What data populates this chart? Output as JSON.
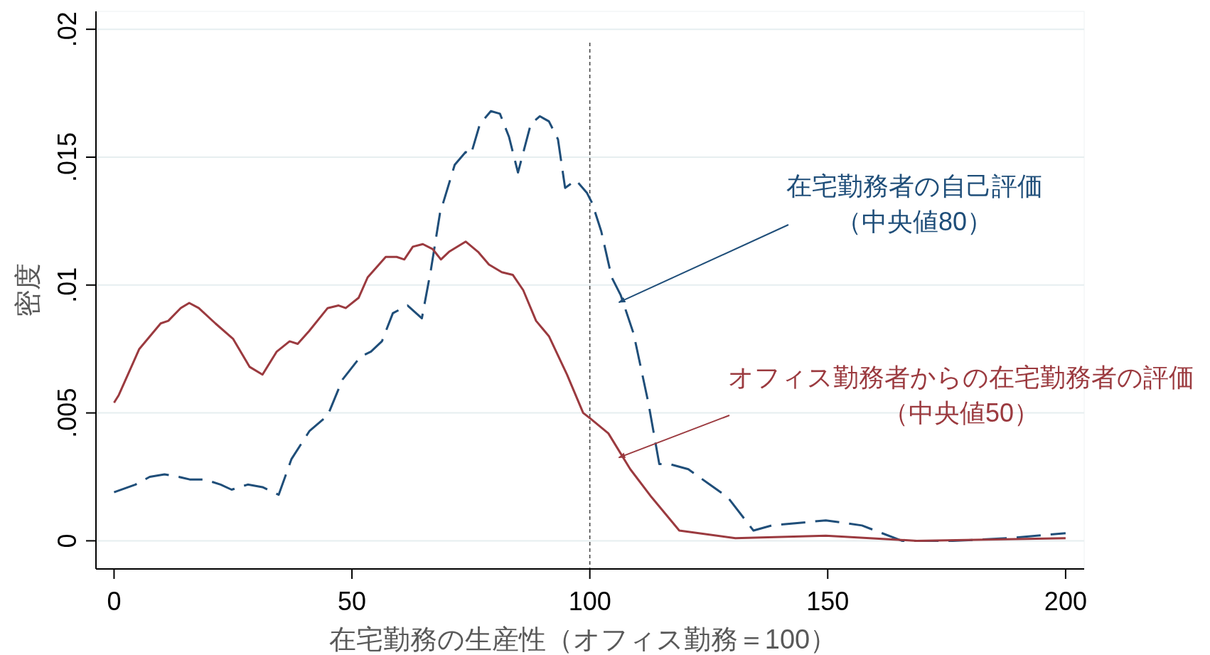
{
  "chart_data": {
    "type": "line",
    "xlabel": "在宅勤務の生産性（オフィス勤務＝100）",
    "ylabel": "密度",
    "xlim": [
      -3.8,
      203.9
    ],
    "xticks": [
      0,
      50,
      100,
      150,
      200
    ],
    "ylim": [
      -0.0011,
      0.0207
    ],
    "yticks": [
      0,
      {
        "value": 0.005,
        "label": ".005"
      },
      {
        "value": 0.01,
        "label": ".01"
      },
      {
        "value": 0.015,
        "label": ".015"
      },
      {
        "value": 0.02,
        "label": ".02"
      }
    ],
    "grid": "y",
    "ref_lines": [
      {
        "axis": "x",
        "value": 100,
        "color": "#404040",
        "line_style": "dashed"
      }
    ],
    "series": [
      {
        "name": "在宅勤務者の自己評価（中央値80）",
        "color": "#1f4e79",
        "line_style": "dashed",
        "x": [
          0,
          4.5,
          7.5,
          10.6,
          13.6,
          15.9,
          19,
          22.4,
          24.7,
          28.1,
          31.2,
          34.6,
          37.3,
          41.1,
          44.9,
          48,
          51.8,
          54,
          56.3,
          58.6,
          61.7,
          64.7,
          66.6,
          68.5,
          71.6,
          73.9,
          75,
          76.9,
          79.2,
          81.1,
          83,
          84.9,
          87.6,
          89.5,
          91.4,
          93.3,
          94.8,
          97.1,
          99.4,
          100.5,
          102.4,
          104.6,
          106.5,
          109.2,
          112.3,
          114.6,
          116.8,
          120.7,
          125.2,
          129,
          134.4,
          138.2,
          149.6,
          157.2,
          165.6,
          176.3,
          187.7,
          200
        ],
        "values": [
          0.0019,
          0.0022,
          0.0025,
          0.0026,
          0.0025,
          0.0024,
          0.0024,
          0.0022,
          0.002,
          0.0022,
          0.0021,
          0.0018,
          0.0032,
          0.0043,
          0.0049,
          0.0063,
          0.0072,
          0.0074,
          0.0078,
          0.0089,
          0.0092,
          0.0087,
          0.0106,
          0.0128,
          0.0147,
          0.0152,
          0.0151,
          0.0163,
          0.0168,
          0.0167,
          0.0158,
          0.0144,
          0.0163,
          0.0166,
          0.0164,
          0.0157,
          0.0138,
          0.0141,
          0.0136,
          0.0132,
          0.0121,
          0.0103,
          0.0096,
          0.0081,
          0.0054,
          0.003,
          0.003,
          0.0028,
          0.0022,
          0.0017,
          0.0004,
          0.0006,
          0.0008,
          0.0006,
          0,
          0,
          0.0001,
          0.0003
        ]
      },
      {
        "name": "オフィス勤務者からの在宅勤務者の評価（中央値50）",
        "color": "#9b3a3f",
        "line_style": "solid",
        "x": [
          0,
          1,
          5.3,
          9.8,
          11.4,
          14,
          15.8,
          17.8,
          21.3,
          25,
          28.5,
          31.2,
          34.2,
          36.9,
          38.6,
          41,
          44.9,
          47.2,
          48.7,
          51.4,
          53.3,
          57.1,
          59.4,
          61,
          62.8,
          64.9,
          67,
          68.7,
          70.4,
          73.9,
          76.5,
          78.8,
          81.5,
          83.8,
          86,
          88.7,
          91.4,
          95.2,
          98.6,
          100,
          103.9,
          108.5,
          113,
          118.8,
          130.6,
          149.6,
          168.7,
          200
        ],
        "values": [
          0.0054,
          0.0057,
          0.0075,
          0.0085,
          0.0086,
          0.0091,
          0.0093,
          0.0091,
          0.0085,
          0.0079,
          0.0068,
          0.0065,
          0.0074,
          0.0078,
          0.0077,
          0.0082,
          0.0091,
          0.0092,
          0.0091,
          0.0095,
          0.0103,
          0.0111,
          0.0111,
          0.011,
          0.0115,
          0.0116,
          0.0114,
          0.011,
          0.0113,
          0.0117,
          0.0113,
          0.0108,
          0.0105,
          0.0104,
          0.0098,
          0.0086,
          0.008,
          0.0065,
          0.005,
          0.0048,
          0.0042,
          0.0028,
          0.0017,
          0.0004,
          0.0001,
          0.0002,
          0,
          0.0001
        ]
      }
    ]
  }
}
